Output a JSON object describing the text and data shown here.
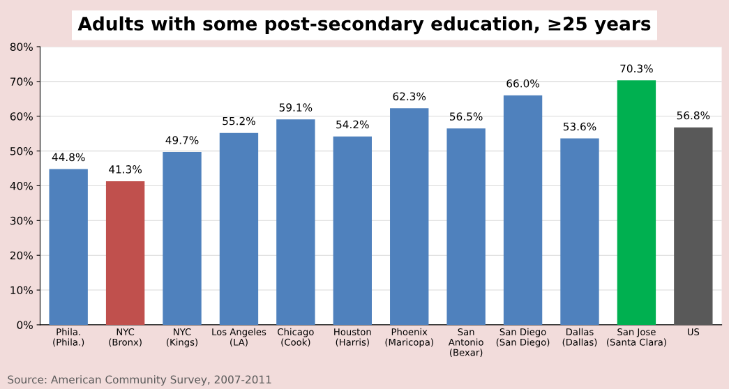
{
  "chart_data": {
    "type": "bar",
    "title": "Adults with some post-secondary education, ≥25 years",
    "categories": [
      "Phila.\n(Phila.)",
      "NYC\n(Bronx)",
      "NYC\n(Kings)",
      "Los Angeles\n(LA)",
      "Chicago\n(Cook)",
      "Houston\n(Harris)",
      "Phoenix\n(Maricopa)",
      "San\nAntonio\n(Bexar)",
      "San Diego\n(San Diego)",
      "Dallas\n(Dallas)",
      "San Jose\n(Santa Clara)",
      "US"
    ],
    "values": [
      44.8,
      41.3,
      49.7,
      55.2,
      59.1,
      54.2,
      62.3,
      56.5,
      66.0,
      53.6,
      70.3,
      56.8
    ],
    "colors": [
      "#4f81bd",
      "#c0504d",
      "#4f81bd",
      "#4f81bd",
      "#4f81bd",
      "#4f81bd",
      "#4f81bd",
      "#4f81bd",
      "#4f81bd",
      "#4f81bd",
      "#00b050",
      "#595959"
    ],
    "value_labels": [
      "44.8%",
      "41.3%",
      "49.7%",
      "55.2%",
      "59.1%",
      "54.2%",
      "62.3%",
      "56.5%",
      "66.0%",
      "53.6%",
      "70.3%",
      "56.8%"
    ],
    "ylim": [
      0,
      80
    ],
    "yticks": [
      {
        "value": 0,
        "label": "0%"
      },
      {
        "value": 10,
        "label": "10%"
      },
      {
        "value": 20,
        "label": "20%"
      },
      {
        "value": 30,
        "label": "30%"
      },
      {
        "value": 40,
        "label": "40%"
      },
      {
        "value": 50,
        "label": "50%"
      },
      {
        "value": 60,
        "label": "60%"
      },
      {
        "value": 70,
        "label": "70%"
      },
      {
        "value": 80,
        "label": "80%"
      }
    ],
    "grid": "y",
    "legend": false,
    "annotations": [
      "Source: American Community Survey, 2007-2011"
    ]
  }
}
